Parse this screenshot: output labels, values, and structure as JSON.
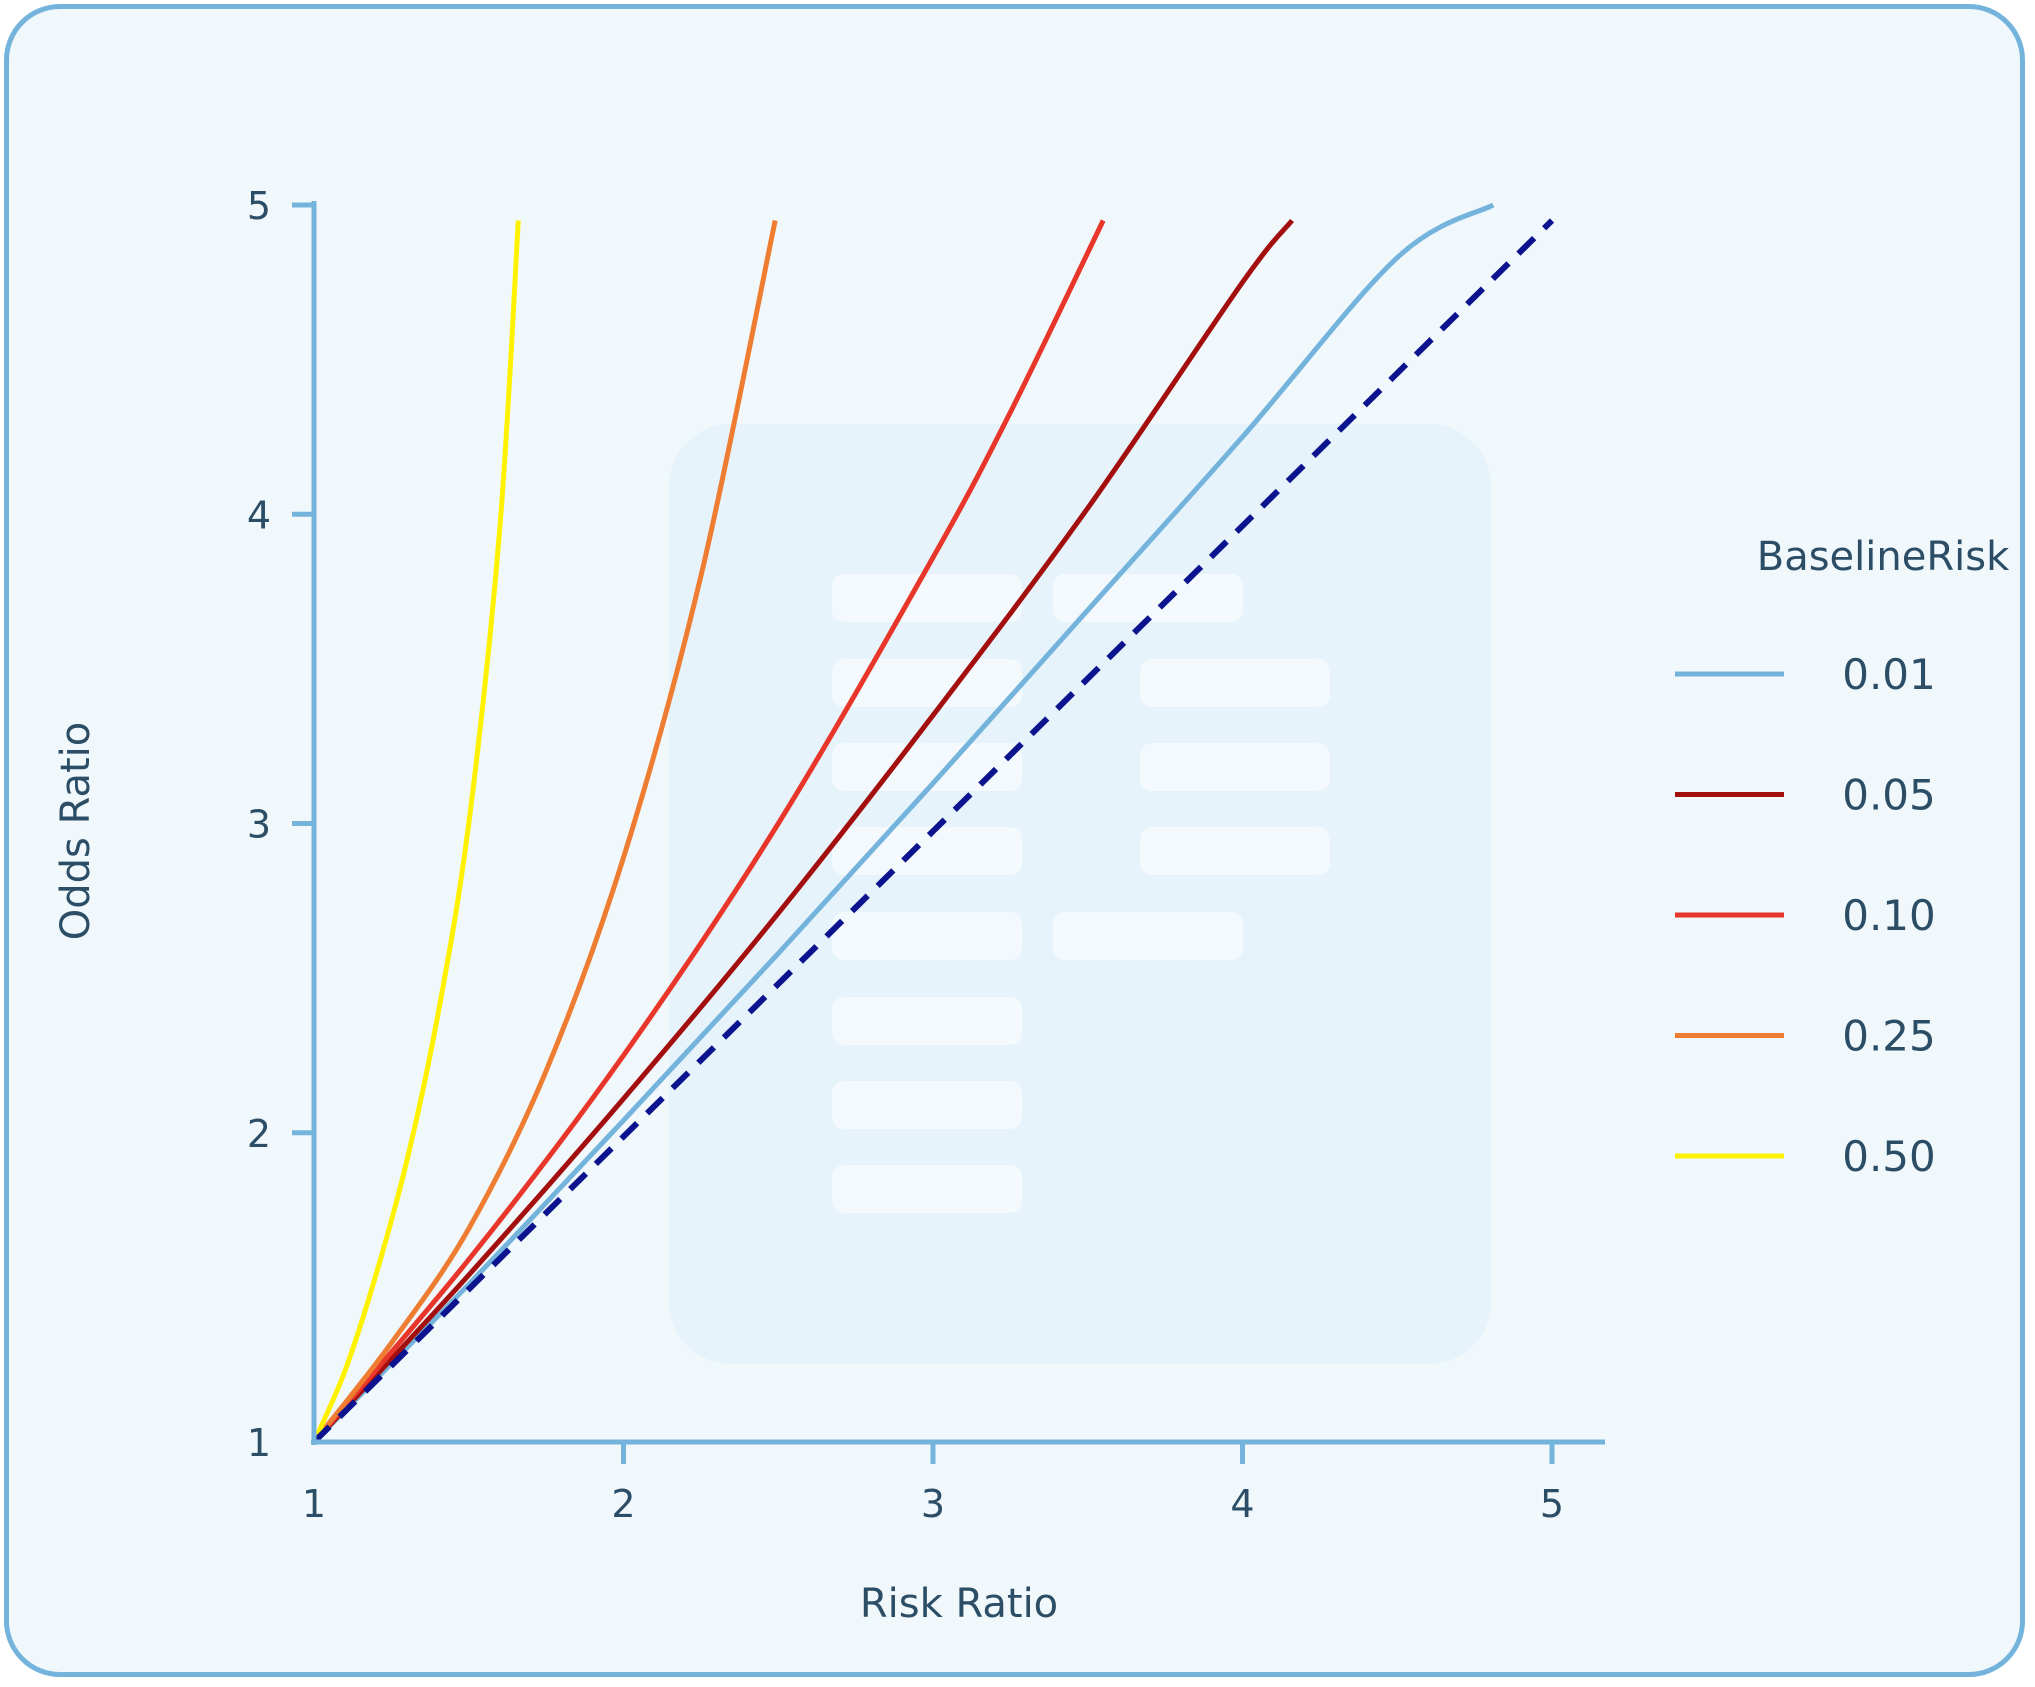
{
  "chart_data": {
    "type": "line",
    "title": "",
    "xlabel": "Risk Ratio",
    "ylabel": "Odds Ratio",
    "xlim": [
      1,
      5.15
    ],
    "ylim": [
      1,
      5
    ],
    "x_ticks": [
      "1",
      "2",
      "3",
      "4",
      "5"
    ],
    "y_ticks": [
      "1",
      "2",
      "3",
      "4",
      "5"
    ],
    "grid": false,
    "legend": {
      "title": "BaselineRisk",
      "placement": "right"
    },
    "series": [
      {
        "name": "0.01",
        "color": "#74b4dc",
        "dash": false,
        "x": [
          1,
          1.5,
          2,
          2.5,
          3,
          3.5,
          4,
          4.5,
          4.81
        ],
        "y": [
          1,
          1.51,
          2.04,
          2.58,
          3.13,
          3.69,
          4.25,
          4.83,
          5.0
        ]
      },
      {
        "name": "0.05",
        "color": "#a30e0e",
        "dash": false,
        "x": [
          1,
          1.5,
          2,
          2.5,
          3,
          3.5,
          4,
          4.16
        ],
        "y": [
          1,
          1.54,
          2.11,
          2.71,
          3.35,
          4.02,
          4.75,
          4.95
        ]
      },
      {
        "name": "0.10",
        "color": "#e8362a",
        "dash": false,
        "x": [
          1,
          1.5,
          2,
          2.5,
          3,
          3.25,
          3.55
        ],
        "y": [
          1,
          1.59,
          2.25,
          3.0,
          3.86,
          4.33,
          4.95
        ]
      },
      {
        "name": "0.25",
        "color": "#ee7d32",
        "dash": false,
        "x": [
          1,
          1.25,
          1.5,
          1.75,
          2,
          2.25,
          2.49
        ],
        "y": [
          1,
          1.32,
          1.69,
          2.2,
          2.89,
          3.8,
          4.95
        ]
      },
      {
        "name": "0.50",
        "color": "#fff200",
        "dash": false,
        "x": [
          1,
          1.1,
          1.2,
          1.3,
          1.4,
          1.5,
          1.6,
          1.66
        ],
        "y": [
          1,
          1.23,
          1.54,
          1.91,
          2.38,
          3.0,
          3.95,
          4.95
        ]
      },
      {
        "color": "#0b148e",
        "dash": true,
        "x": [
          1,
          5
        ],
        "y": [
          1,
          4.95
        ]
      }
    ]
  }
}
